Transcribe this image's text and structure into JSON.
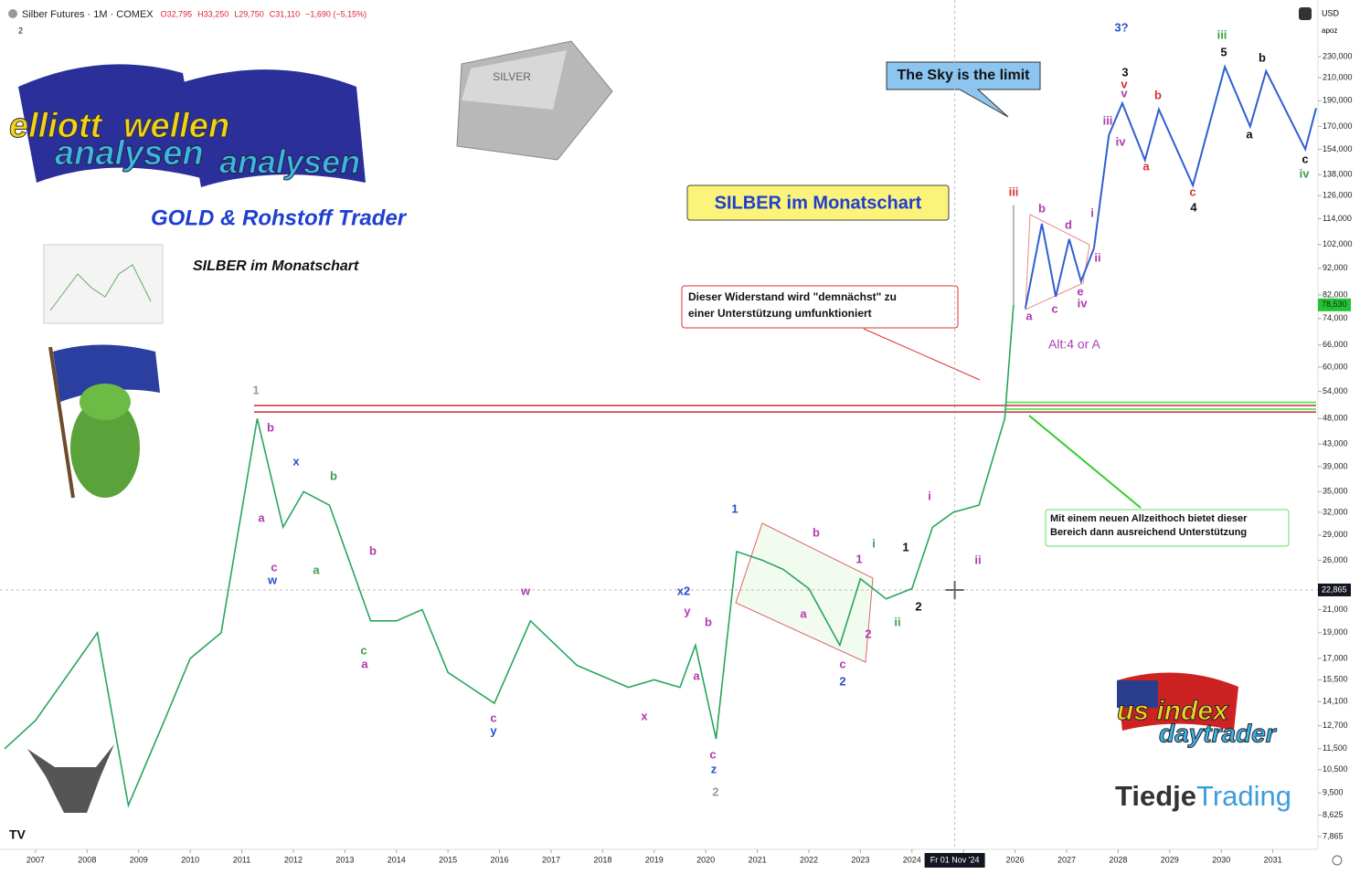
{
  "chart_data": {
    "type": "line",
    "header": [
      "Silber Futures · 1M · COMEX",
      "O32,795",
      "H33,250",
      "L29,750",
      "C31,110",
      "−1,690 (−5,15%)"
    ],
    "currency": "USD",
    "scale_label": "apoz",
    "interval_badge": "2",
    "title": "GOLD & Rohstoff Trader",
    "subtitle": "SILBER im Monatschart",
    "boxed_title": "SILBER im Monatschart",
    "callout": "The Sky is the limit",
    "note_resistance": [
      "Dieser Widerstand wird \"demnächst\" zu",
      "einer Unterstützung umfunktioniert"
    ],
    "note_support": [
      "Mit einem neuen Allzeithoch bietet dieser",
      "Bereich dann ausreichend Unterstützung"
    ],
    "alt_label": "Alt:4 or A",
    "brand": [
      "Tiedje",
      "Trading"
    ],
    "logos": [
      "elliott",
      "wellen",
      "analysen",
      "us index",
      "daytrader",
      "SILVER"
    ],
    "log_scale": true,
    "xlim": [
      2006.31,
      2031.84
    ],
    "ylim": [
      7.44,
      261
    ],
    "xticks": [
      2007,
      2008,
      2009,
      2010,
      2011,
      2012,
      2013,
      2014,
      2015,
      2016,
      2017,
      2018,
      2019,
      2020,
      2021,
      2022,
      2023,
      2024,
      2025,
      2026,
      2027,
      2028,
      2029,
      2030,
      2031
    ],
    "yticks": [
      {
        "value": 230,
        "label": "230,000"
      },
      {
        "value": 210,
        "label": "210,000"
      },
      {
        "value": 190,
        "label": "190,000"
      },
      {
        "value": 170,
        "label": "170,000"
      },
      {
        "value": 154,
        "label": "154,000"
      },
      {
        "value": 138,
        "label": "138,000"
      },
      {
        "value": 126,
        "label": "126,000"
      },
      {
        "value": 114,
        "label": "114,000"
      },
      {
        "value": 102,
        "label": "102,000"
      },
      {
        "value": 92,
        "label": "92,000"
      },
      {
        "value": 82,
        "label": "82,000"
      },
      {
        "value": 74,
        "label": "74,000"
      },
      {
        "value": 66,
        "label": "66,000"
      },
      {
        "value": 60,
        "label": "60,000"
      },
      {
        "value": 54,
        "label": "54,000"
      },
      {
        "value": 48,
        "label": "48,000"
      },
      {
        "value": 43,
        "label": "43,000"
      },
      {
        "value": 39,
        "label": "39,000"
      },
      {
        "value": 35,
        "label": "35,000"
      },
      {
        "value": 32,
        "label": "32,000"
      },
      {
        "value": 29,
        "label": "29,000"
      },
      {
        "value": 26,
        "label": "26,000"
      },
      {
        "value": 21,
        "label": "21,000"
      },
      {
        "value": 19,
        "label": "19,000"
      },
      {
        "value": 17,
        "label": "17,000"
      },
      {
        "value": 15.5,
        "label": "15,500"
      },
      {
        "value": 14.1,
        "label": "14,100"
      },
      {
        "value": 12.7,
        "label": "12,700"
      },
      {
        "value": 11.5,
        "label": "11,500"
      },
      {
        "value": 10.5,
        "label": "10,500"
      },
      {
        "value": 9.5,
        "label": "9,500"
      },
      {
        "value": 8.625,
        "label": "8,625"
      },
      {
        "value": 7.865,
        "label": "7,865"
      }
    ],
    "series": [
      {
        "color": "#26a65b",
        "x": [
          2006.4,
          2007,
          2008.2,
          2008.8,
          2009.5,
          2010,
          2010.6,
          2011.3,
          2011.8,
          2012.2,
          2012.7,
          2013.5,
          2014,
          2014.5,
          2015,
          2015.9,
          2016.6,
          2017.5,
          2018.5,
          2019,
          2019.5,
          2019.8,
          2020.2,
          2020.6,
          2021.1,
          2021.5,
          2022,
          2022.6,
          2023,
          2023.5,
          2024,
          2024.4,
          2024.8,
          2025.3,
          2025.8,
          2025.97
        ],
        "values": [
          11.5,
          13,
          19,
          9,
          13,
          17,
          19,
          48,
          30,
          35,
          33,
          20,
          20,
          21,
          16,
          14,
          20,
          16.5,
          15,
          15.5,
          15,
          18,
          12,
          27,
          26,
          25,
          23,
          18,
          24,
          22,
          23,
          30,
          32,
          33,
          48,
          78.53
        ]
      },
      {
        "color": "#aaaaaa",
        "x": [
          2025.97,
          2025.97
        ],
        "values": [
          78.53,
          121
        ]
      },
      {
        "color": "#2f5fd0",
        "x": [
          2026.2,
          2026.52,
          2026.79,
          2027.05,
          2027.28,
          2027.53,
          2027.82,
          2028.08,
          2028.52,
          2028.79,
          2029.45,
          2030.07,
          2030.56,
          2030.87,
          2031.63,
          2031.84
        ],
        "values": [
          77.3,
          111.6,
          81.4,
          104.4,
          87,
          100.3,
          163.7,
          188,
          147,
          183,
          131.7,
          220,
          170,
          216,
          154,
          184
        ]
      }
    ],
    "levels": [
      {
        "value": 50.8,
        "color": "#c0313a"
      },
      {
        "value": 49.4,
        "color": "#c0313a"
      },
      {
        "value": 51.5,
        "color": "#6fe36f"
      },
      {
        "value": 50,
        "color": "#6fe36f"
      }
    ],
    "last_price": {
      "value": 78.53,
      "label": "78,530",
      "color": "#22c433"
    },
    "crosshair": {
      "x": {
        "value": 2024.83,
        "label": "Fr 01 Nov '24"
      },
      "y": {
        "value": 22.865,
        "label": "22,865"
      }
    },
    "wave_labels": [
      {
        "text": "1",
        "color": "#999999"
      },
      {
        "text": "b",
        "color": "#b03bb0"
      },
      {
        "text": "a",
        "color": "#b03bb0"
      },
      {
        "text": "c",
        "color": "#b03bb0"
      },
      {
        "text": "w",
        "color": "#2b4fc7"
      },
      {
        "text": "x",
        "color": "#2b4fc7"
      },
      {
        "text": "b",
        "color": "#3aa04a"
      },
      {
        "text": "a",
        "color": "#3aa04a"
      },
      {
        "text": "b",
        "color": "#b03bb0"
      },
      {
        "text": "c",
        "color": "#3aa04a"
      },
      {
        "text": "a",
        "color": "#b03bb0"
      },
      {
        "text": "w",
        "color": "#b03bb0"
      },
      {
        "text": "c",
        "color": "#b03bb0"
      },
      {
        "text": "y",
        "color": "#2b4fc7"
      },
      {
        "text": "x",
        "color": "#b03bb0"
      },
      {
        "text": "x2",
        "color": "#2b4fc7"
      },
      {
        "text": "y",
        "color": "#b03bb0"
      },
      {
        "text": "b",
        "color": "#b03bb0"
      },
      {
        "text": "a",
        "color": "#b03bb0"
      },
      {
        "text": "c",
        "color": "#b03bb0"
      },
      {
        "text": "z",
        "color": "#2b4fc7"
      },
      {
        "text": "2",
        "color": "#999999"
      },
      {
        "text": "1",
        "color": "#2b4fc7"
      },
      {
        "text": "b",
        "color": "#b03bb0"
      },
      {
        "text": "a",
        "color": "#b03bb0"
      },
      {
        "text": "1",
        "color": "#b03bb0"
      },
      {
        "text": "i",
        "color": "#3aa04a"
      },
      {
        "text": "2",
        "color": "#b03bb0"
      },
      {
        "text": "c",
        "color": "#b03bb0"
      },
      {
        "text": "2",
        "color": "#2b4fc7"
      },
      {
        "text": "ii",
        "color": "#3aa04a"
      },
      {
        "text": "1",
        "color": "#111111"
      },
      {
        "text": "2",
        "color": "#111111"
      },
      {
        "text": "i",
        "color": "#b03bb0"
      },
      {
        "text": "ii",
        "color": "#b03bb0"
      },
      {
        "text": "iii",
        "color": "#d33333"
      },
      {
        "text": "a",
        "color": "#b03bb0"
      },
      {
        "text": "b",
        "color": "#b03bb0"
      },
      {
        "text": "c",
        "color": "#b03bb0"
      },
      {
        "text": "d",
        "color": "#b03bb0"
      },
      {
        "text": "e",
        "color": "#b03bb0"
      },
      {
        "text": "iv",
        "color": "#b03bb0"
      },
      {
        "text": "i",
        "color": "#b03bb0"
      },
      {
        "text": "ii",
        "color": "#b03bb0"
      },
      {
        "text": "iii",
        "color": "#b03bb0"
      },
      {
        "text": "iv",
        "color": "#b03bb0"
      },
      {
        "text": "v",
        "color": "#b03bb0"
      },
      {
        "text": "v",
        "color": "#d33333"
      },
      {
        "text": "3",
        "color": "#111111"
      },
      {
        "text": "b",
        "color": "#d33333"
      },
      {
        "text": "a",
        "color": "#d33333"
      },
      {
        "text": "c",
        "color": "#d33333"
      },
      {
        "text": "4",
        "color": "#111111"
      },
      {
        "text": "3?",
        "color": "#2b4fc7"
      },
      {
        "text": "iii",
        "color": "#3aa04a"
      },
      {
        "text": "5",
        "color": "#111111"
      },
      {
        "text": "b",
        "color": "#111111"
      },
      {
        "text": "a",
        "color": "#111111"
      },
      {
        "text": "c",
        "color": "#111111"
      },
      {
        "text": "iv",
        "color": "#3aa04a"
      }
    ]
  }
}
